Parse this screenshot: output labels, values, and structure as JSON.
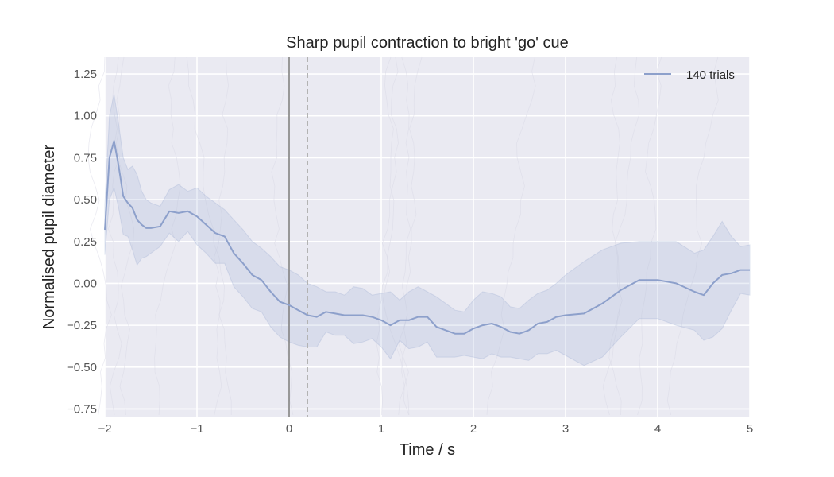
{
  "chart_data": {
    "type": "line",
    "title": "Sharp pupil contraction to bright 'go' cue",
    "xlabel": "Time / s",
    "ylabel": "Normalised pupil diameter",
    "xlim": [
      -2,
      5
    ],
    "ylim": [
      -0.8,
      1.35
    ],
    "x_ticks": [
      -2,
      -1,
      0,
      1,
      2,
      3,
      4,
      5
    ],
    "x_tick_labels": [
      "−2",
      "−1",
      "0",
      "1",
      "2",
      "3",
      "4",
      "5"
    ],
    "y_ticks": [
      -0.75,
      -0.5,
      -0.25,
      0.0,
      0.25,
      0.5,
      0.75,
      1.0,
      1.25
    ],
    "y_tick_labels": [
      "−0.75",
      "−0.50",
      "−0.25",
      "0.00",
      "0.25",
      "0.50",
      "0.75",
      "1.00",
      "1.25"
    ],
    "grid": true,
    "legend_position": "top-right",
    "vlines": [
      {
        "x": 0.0,
        "style": "solid",
        "color": "#808080"
      },
      {
        "x": 0.2,
        "style": "dashed",
        "color": "#b3b3b3"
      }
    ],
    "series": [
      {
        "name": "140 trials",
        "color": "#8da0cb",
        "x": [
          -2.0,
          -1.95,
          -1.9,
          -1.85,
          -1.8,
          -1.75,
          -1.7,
          -1.65,
          -1.6,
          -1.55,
          -1.5,
          -1.4,
          -1.3,
          -1.2,
          -1.1,
          -1.0,
          -0.9,
          -0.8,
          -0.7,
          -0.6,
          -0.5,
          -0.4,
          -0.3,
          -0.2,
          -0.1,
          0.0,
          0.1,
          0.2,
          0.3,
          0.4,
          0.5,
          0.6,
          0.7,
          0.8,
          0.9,
          1.0,
          1.1,
          1.2,
          1.3,
          1.4,
          1.5,
          1.6,
          1.7,
          1.8,
          1.9,
          2.0,
          2.1,
          2.2,
          2.3,
          2.4,
          2.5,
          2.6,
          2.7,
          2.8,
          2.9,
          3.0,
          3.2,
          3.4,
          3.6,
          3.8,
          4.0,
          4.2,
          4.4,
          4.5,
          4.6,
          4.7,
          4.8,
          4.9,
          5.0
        ],
        "mean": [
          0.32,
          0.75,
          0.85,
          0.7,
          0.52,
          0.48,
          0.45,
          0.38,
          0.35,
          0.33,
          0.33,
          0.34,
          0.43,
          0.42,
          0.43,
          0.4,
          0.35,
          0.3,
          0.28,
          0.18,
          0.12,
          0.05,
          0.02,
          -0.05,
          -0.11,
          -0.13,
          -0.16,
          -0.19,
          -0.2,
          -0.17,
          -0.18,
          -0.19,
          -0.19,
          -0.19,
          -0.2,
          -0.22,
          -0.25,
          -0.22,
          -0.22,
          -0.2,
          -0.2,
          -0.26,
          -0.28,
          -0.3,
          -0.3,
          -0.27,
          -0.25,
          -0.24,
          -0.26,
          -0.29,
          -0.3,
          -0.28,
          -0.24,
          -0.23,
          -0.2,
          -0.19,
          -0.18,
          -0.12,
          -0.04,
          0.02,
          0.02,
          0.0,
          -0.05,
          -0.07,
          0.0,
          0.05,
          0.06,
          0.08,
          0.08
        ],
        "upper": [
          0.47,
          1.0,
          1.13,
          0.95,
          0.75,
          0.68,
          0.7,
          0.65,
          0.55,
          0.5,
          0.48,
          0.46,
          0.56,
          0.59,
          0.55,
          0.57,
          0.52,
          0.48,
          0.44,
          0.38,
          0.32,
          0.25,
          0.21,
          0.16,
          0.1,
          0.08,
          0.05,
          0.0,
          -0.02,
          -0.05,
          -0.05,
          -0.07,
          -0.02,
          -0.03,
          -0.07,
          -0.06,
          -0.05,
          -0.1,
          -0.05,
          -0.02,
          -0.05,
          -0.08,
          -0.12,
          -0.16,
          -0.17,
          -0.1,
          -0.05,
          -0.06,
          -0.08,
          -0.14,
          -0.15,
          -0.1,
          -0.06,
          -0.04,
          0.0,
          0.05,
          0.13,
          0.2,
          0.24,
          0.25,
          0.25,
          0.25,
          0.18,
          0.2,
          0.28,
          0.37,
          0.28,
          0.22,
          0.23
        ],
        "lower": [
          0.17,
          0.5,
          0.57,
          0.45,
          0.29,
          0.28,
          0.2,
          0.11,
          0.15,
          0.16,
          0.18,
          0.22,
          0.3,
          0.25,
          0.31,
          0.23,
          0.18,
          0.12,
          0.12,
          -0.02,
          -0.08,
          -0.15,
          -0.17,
          -0.26,
          -0.32,
          -0.35,
          -0.37,
          -0.38,
          -0.38,
          -0.29,
          -0.31,
          -0.31,
          -0.36,
          -0.35,
          -0.33,
          -0.38,
          -0.45,
          -0.34,
          -0.39,
          -0.38,
          -0.35,
          -0.44,
          -0.44,
          -0.44,
          -0.43,
          -0.44,
          -0.45,
          -0.42,
          -0.44,
          -0.44,
          -0.45,
          -0.46,
          -0.42,
          -0.42,
          -0.4,
          -0.43,
          -0.49,
          -0.44,
          -0.32,
          -0.21,
          -0.21,
          -0.25,
          -0.28,
          -0.34,
          -0.32,
          -0.27,
          -0.16,
          -0.06,
          -0.07
        ]
      }
    ]
  }
}
